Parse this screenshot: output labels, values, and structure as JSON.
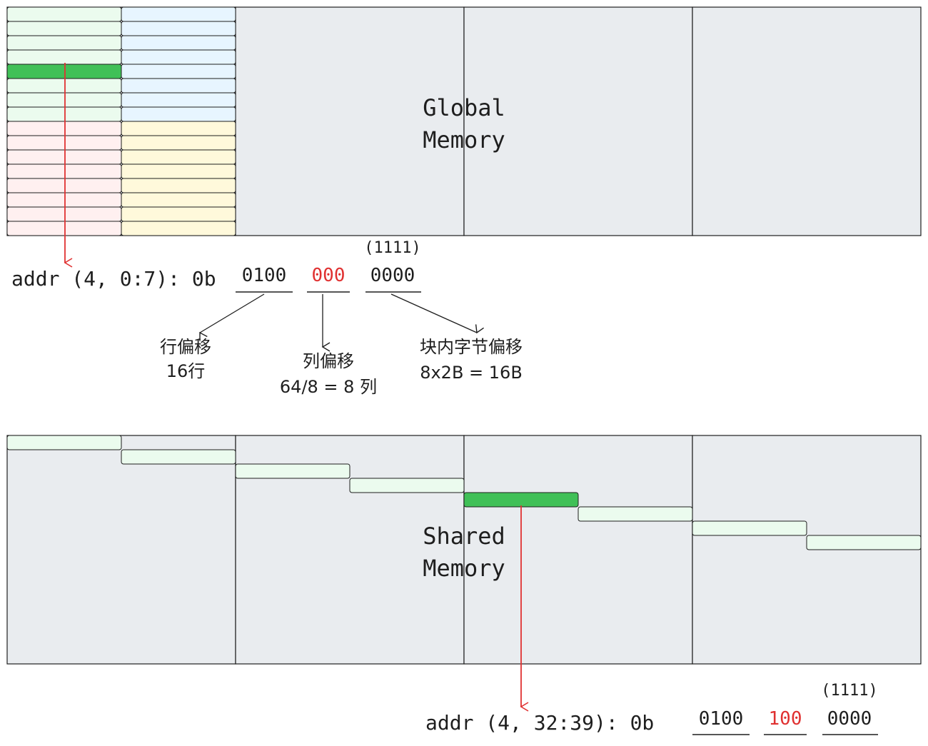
{
  "colors": {
    "memory_bg": "#e9ecef",
    "outline": "#1e1e1e",
    "green_light": "#ebfbee",
    "green_highlight": "#40c057",
    "blue_light": "#e7f5ff",
    "red_light": "#fff0f0",
    "yellow_light": "#fff9db",
    "arrow_red": "#e03131",
    "text_red": "#e03131",
    "text_dark": "#1e1e1e"
  },
  "global_memory": {
    "label_line1": "Global",
    "label_line2": "Memory"
  },
  "shared_memory": {
    "label_line1": "Shared",
    "label_line2": "Memory"
  },
  "global_addr": {
    "prefix": "addr (4, 0:7): 0b",
    "row_bits": "0100",
    "col_bits": "000",
    "byte_bits": "0000",
    "byte_bits_note": "(1111)"
  },
  "shared_addr": {
    "prefix": "addr (4, 32:39): 0b",
    "row_bits": "0100",
    "col_bits": "100",
    "byte_bits": "0000",
    "byte_bits_note": "(1111)"
  },
  "annotations": {
    "row_offset_title": "行偏移",
    "row_offset_value": "16行",
    "col_offset_title": "列偏移",
    "col_offset_value": "64/8 = 8 列",
    "byte_offset_title": "块内字节偏移",
    "byte_offset_value": "8x2B = 16B"
  }
}
